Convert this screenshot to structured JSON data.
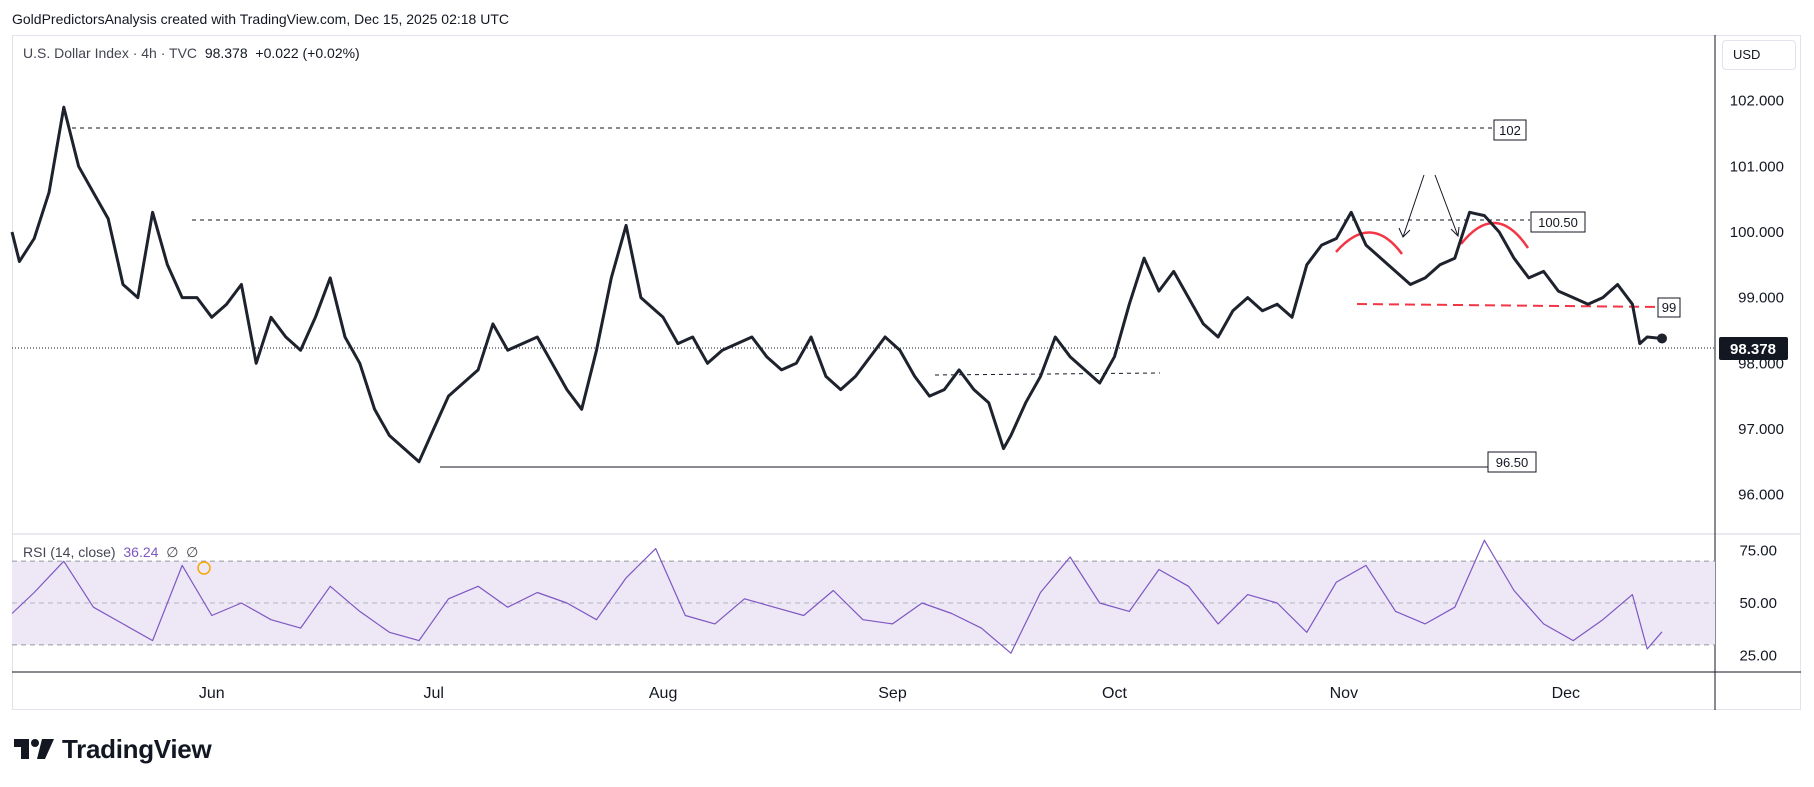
{
  "header": {
    "credit": "GoldPredictorsAnalysis created with TradingView.com, Dec 15, 2025 02:18 UTC"
  },
  "legend": {
    "symbol": "U.S. Dollar Index · 4h · TVC",
    "price": "98.378",
    "change": "+0.022 (+0.02%)"
  },
  "rsi_legend": {
    "label": "RSI (14, close)",
    "value": "36.24",
    "extra": "∅  ∅"
  },
  "price_scale": {
    "currency_button": "USD",
    "current_price_label": "98.378"
  },
  "brand": {
    "name": "TradingView"
  },
  "colors": {
    "price_line": "#1e222d",
    "rsi_line": "#7e57c2",
    "rsi_band": "#ede7f6",
    "pattern": "#f23645",
    "label_bg": "#131722"
  },
  "chart_data": [
    {
      "type": "line",
      "title": "U.S. Dollar Index · 4h · TVC",
      "x_tick_labels": [
        "Jun",
        "Jul",
        "Aug",
        "Sep",
        "Oct",
        "Nov",
        "Dec"
      ],
      "x_tick_dates": [
        "2025-06-01",
        "2025-07-01",
        "2025-08-01",
        "2025-09-01",
        "2025-10-01",
        "2025-11-01",
        "2025-12-01"
      ],
      "y_tick_labels": [
        "102.000",
        "101.000",
        "100.000",
        "99.000",
        "98.000",
        "97.000",
        "96.000"
      ],
      "ylim": [
        95.4,
        103.0
      ],
      "grid": false,
      "series": [
        {
          "x": [
            "2025-05-05",
            "2025-05-06",
            "2025-05-08",
            "2025-05-10",
            "2025-05-12",
            "2025-05-14",
            "2025-05-16",
            "2025-05-18",
            "2025-05-20",
            "2025-05-22",
            "2025-05-24",
            "2025-05-26",
            "2025-05-28",
            "2025-05-30",
            "2025-06-01",
            "2025-06-03",
            "2025-06-05",
            "2025-06-07",
            "2025-06-09",
            "2025-06-11",
            "2025-06-13",
            "2025-06-15",
            "2025-06-17",
            "2025-06-19",
            "2025-06-21",
            "2025-06-23",
            "2025-06-25",
            "2025-06-27",
            "2025-06-29",
            "2025-07-01",
            "2025-07-03",
            "2025-07-05",
            "2025-07-07",
            "2025-07-09",
            "2025-07-11",
            "2025-07-13",
            "2025-07-15",
            "2025-07-17",
            "2025-07-19",
            "2025-07-21",
            "2025-07-23",
            "2025-07-25",
            "2025-07-27",
            "2025-07-29",
            "2025-07-31",
            "2025-08-01",
            "2025-08-03",
            "2025-08-05",
            "2025-08-07",
            "2025-08-09",
            "2025-08-11",
            "2025-08-13",
            "2025-08-15",
            "2025-08-17",
            "2025-08-19",
            "2025-08-21",
            "2025-08-23",
            "2025-08-25",
            "2025-08-27",
            "2025-08-29",
            "2025-08-31",
            "2025-09-02",
            "2025-09-04",
            "2025-09-06",
            "2025-09-08",
            "2025-09-10",
            "2025-09-12",
            "2025-09-14",
            "2025-09-16",
            "2025-09-17",
            "2025-09-19",
            "2025-09-21",
            "2025-09-23",
            "2025-09-25",
            "2025-09-27",
            "2025-09-29",
            "2025-10-01",
            "2025-10-03",
            "2025-10-05",
            "2025-10-07",
            "2025-10-09",
            "2025-10-11",
            "2025-10-13",
            "2025-10-15",
            "2025-10-17",
            "2025-10-19",
            "2025-10-21",
            "2025-10-23",
            "2025-10-25",
            "2025-10-27",
            "2025-10-29",
            "2025-10-31",
            "2025-11-02",
            "2025-11-04",
            "2025-11-06",
            "2025-11-08",
            "2025-11-10",
            "2025-11-12",
            "2025-11-14",
            "2025-11-16",
            "2025-11-18",
            "2025-11-20",
            "2025-11-22",
            "2025-11-24",
            "2025-11-26",
            "2025-11-28",
            "2025-11-30",
            "2025-12-02",
            "2025-12-04",
            "2025-12-06",
            "2025-12-08",
            "2025-12-10",
            "2025-12-11",
            "2025-12-12",
            "2025-12-14"
          ],
          "values": [
            100.0,
            99.55,
            99.9,
            100.6,
            101.9,
            101.0,
            100.6,
            100.2,
            99.2,
            99.0,
            100.3,
            99.5,
            99.0,
            99.0,
            98.7,
            98.9,
            99.2,
            98.0,
            98.7,
            98.4,
            98.2,
            98.7,
            99.3,
            98.4,
            98.0,
            97.3,
            96.9,
            96.7,
            96.5,
            97.0,
            97.5,
            97.7,
            97.9,
            98.6,
            98.2,
            98.3,
            98.4,
            98.0,
            97.6,
            97.3,
            98.2,
            99.3,
            100.1,
            99.0,
            98.8,
            98.7,
            98.3,
            98.4,
            98.0,
            98.2,
            98.3,
            98.4,
            98.1,
            97.9,
            98.0,
            98.4,
            97.8,
            97.6,
            97.8,
            98.1,
            98.4,
            98.2,
            97.8,
            97.5,
            97.6,
            97.9,
            97.6,
            97.4,
            96.7,
            96.9,
            97.4,
            97.8,
            98.4,
            98.1,
            97.9,
            97.7,
            98.1,
            98.9,
            99.6,
            99.1,
            99.4,
            99.0,
            98.6,
            98.4,
            98.8,
            99.0,
            98.8,
            98.9,
            98.7,
            99.5,
            99.8,
            99.9,
            100.3,
            99.8,
            99.6,
            99.4,
            99.2,
            99.3,
            99.5,
            99.6,
            100.3,
            100.25,
            100.0,
            99.6,
            99.3,
            99.4,
            99.1,
            99.0,
            98.9,
            99.0,
            99.2,
            98.9,
            98.3,
            98.4,
            98.378
          ]
        }
      ],
      "annotations": {
        "levels": [
          "102",
          "100.50",
          "99",
          "96.50"
        ],
        "level_values": [
          102.0,
          100.5,
          99.0,
          96.5
        ],
        "pattern": "double top (two red arcs) with neckline at 99"
      }
    },
    {
      "type": "line",
      "title": "RSI (14, close)",
      "y_tick_labels": [
        "75.00",
        "50.00",
        "25.00"
      ],
      "ylim": [
        17,
        83
      ],
      "bands": [
        30,
        50,
        70
      ],
      "series": [
        {
          "x": [
            "2025-05-05",
            "2025-05-08",
            "2025-05-12",
            "2025-05-16",
            "2025-05-20",
            "2025-05-24",
            "2025-05-28",
            "2025-06-01",
            "2025-06-05",
            "2025-06-09",
            "2025-06-13",
            "2025-06-17",
            "2025-06-21",
            "2025-06-25",
            "2025-06-29",
            "2025-07-03",
            "2025-07-07",
            "2025-07-11",
            "2025-07-15",
            "2025-07-19",
            "2025-07-23",
            "2025-07-27",
            "2025-07-31",
            "2025-08-04",
            "2025-08-08",
            "2025-08-12",
            "2025-08-16",
            "2025-08-20",
            "2025-08-24",
            "2025-08-28",
            "2025-09-01",
            "2025-09-05",
            "2025-09-09",
            "2025-09-13",
            "2025-09-17",
            "2025-09-21",
            "2025-09-25",
            "2025-09-29",
            "2025-10-03",
            "2025-10-07",
            "2025-10-11",
            "2025-10-15",
            "2025-10-19",
            "2025-10-23",
            "2025-10-27",
            "2025-10-31",
            "2025-11-04",
            "2025-11-08",
            "2025-11-12",
            "2025-11-16",
            "2025-11-20",
            "2025-11-24",
            "2025-11-28",
            "2025-12-02",
            "2025-12-06",
            "2025-12-10",
            "2025-12-12",
            "2025-12-14"
          ],
          "values": [
            45,
            55,
            70,
            48,
            40,
            32,
            68,
            44,
            50,
            42,
            38,
            58,
            46,
            36,
            32,
            52,
            58,
            48,
            55,
            50,
            42,
            62,
            76,
            44,
            40,
            52,
            48,
            44,
            56,
            42,
            40,
            50,
            45,
            38,
            26,
            55,
            72,
            50,
            46,
            66,
            58,
            40,
            54,
            50,
            36,
            60,
            68,
            46,
            40,
            48,
            80,
            56,
            40,
            32,
            42,
            54,
            28,
            36.24
          ]
        }
      ]
    }
  ]
}
